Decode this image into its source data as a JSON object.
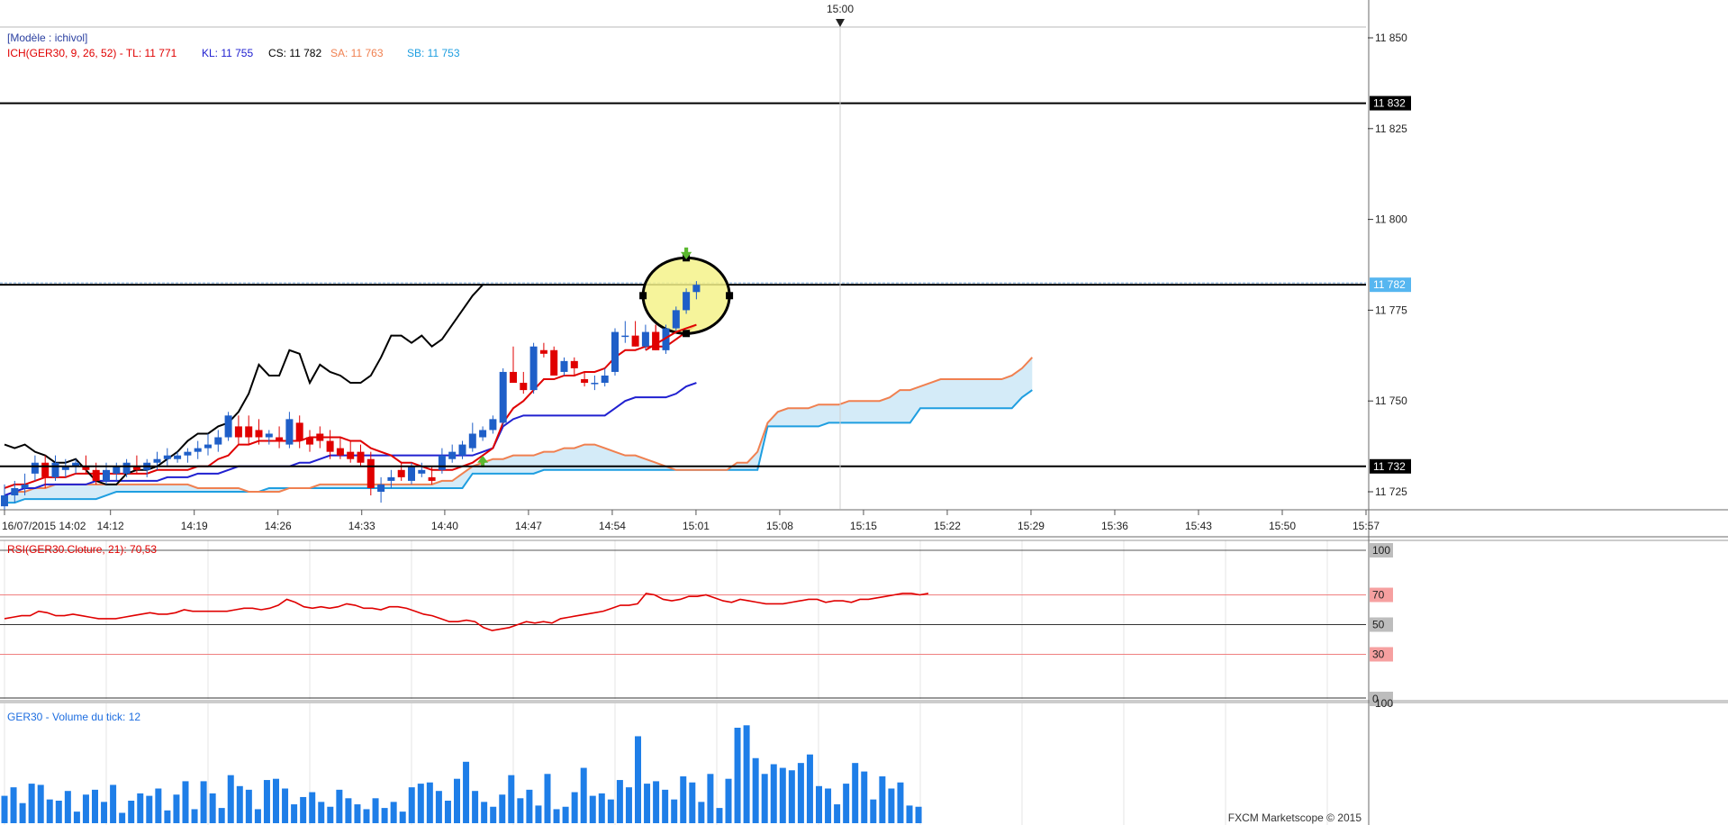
{
  "top_marker": {
    "label": "15:00"
  },
  "price_panel": {
    "model_label": "[Modèle : ichivol]",
    "indicator_parts": [
      {
        "text": "ICH(GER30, 9, 26, 52) -  TL: 11 771",
        "color": "#e00000"
      },
      {
        "text": "KL: 11 755",
        "color": "#2020d0"
      },
      {
        "text": "CS: 11 782",
        "color": "#000000"
      },
      {
        "text": "SA: 11 763",
        "color": "#f08050"
      },
      {
        "text": "SB: 11 753",
        "color": "#1e9ee0"
      }
    ],
    "y_ticks": [
      "11 850",
      "11 825",
      "11 800",
      "11 775",
      "11 750",
      "11 725"
    ],
    "price_tags": [
      {
        "text": "11 832",
        "style": "black"
      },
      {
        "text": "11 782",
        "style": "blue"
      },
      {
        "text": "11 732",
        "style": "black"
      }
    ]
  },
  "x_axis": {
    "labels": [
      "16/07/2015 14:02",
      "14:12",
      "14:19",
      "14:26",
      "14:33",
      "14:40",
      "14:47",
      "14:54",
      "15:01",
      "15:08",
      "15:15",
      "15:22",
      "15:29",
      "15:36",
      "15:43",
      "15:50",
      "15:57"
    ]
  },
  "rsi_panel": {
    "title": "RSI(GER30.Cloture, 21): 70,53",
    "levels": [
      "100",
      "70",
      "50",
      "30",
      "0"
    ]
  },
  "volume_panel": {
    "title": "GER30 - Volume du tick: 12",
    "tick": "100"
  },
  "watermark": "FXCM Marketscope © 2015",
  "colors": {
    "bull": "#1f5fc8",
    "bear": "#e00000",
    "tenkan": "#e00000",
    "kijun": "#2020d0",
    "chikou": "#000000",
    "senkou_a": "#f08050",
    "senkou_b": "#1e9ee0",
    "cloud": "#cfe9f7",
    "rsi": "#e00000",
    "volume": "#1e7ee8",
    "highlight": "#f5f28a"
  },
  "chart_data": [
    {
      "type": "candlestick",
      "title": "ICH(GER30, 9, 26, 52)",
      "x_start": "14:02",
      "interval_minutes": 1,
      "ylim": [
        11710,
        11853
      ],
      "candles": [
        [
          11721,
          11727,
          11719,
          11724
        ],
        [
          11724,
          11728,
          11722,
          11726
        ],
        [
          11726,
          11730,
          11724,
          11727
        ],
        [
          11730,
          11735,
          11728,
          11733
        ],
        [
          11733,
          11735,
          11726,
          11729
        ],
        [
          11729,
          11735,
          11728,
          11733
        ],
        [
          11731,
          11734,
          11729,
          11732
        ],
        [
          11732,
          11734,
          11730,
          11733
        ],
        [
          11732,
          11735,
          11730,
          11731
        ],
        [
          11731,
          11733,
          11727,
          11728
        ],
        [
          11728,
          11733,
          11727,
          11731
        ],
        [
          11730,
          11733,
          11728,
          11732
        ],
        [
          11730,
          11734,
          11729,
          11733
        ],
        [
          11732,
          11735,
          11730,
          11731
        ],
        [
          11731,
          11734,
          11729,
          11733
        ],
        [
          11733,
          11736,
          11731,
          11734
        ],
        [
          11734,
          11737,
          11732,
          11735
        ],
        [
          11734,
          11736,
          11733,
          11735
        ],
        [
          11735,
          11737,
          11733,
          11736
        ],
        [
          11736,
          11739,
          11734,
          11737
        ],
        [
          11737,
          11741,
          11735,
          11738
        ],
        [
          11738,
          11742,
          11736,
          11740
        ],
        [
          11740,
          11747,
          11739,
          11746
        ],
        [
          11743,
          11746,
          11738,
          11740
        ],
        [
          11743,
          11746,
          11738,
          11740
        ],
        [
          11742,
          11745,
          11738,
          11740
        ],
        [
          11740,
          11742,
          11738,
          11741
        ],
        [
          11740,
          11743,
          11737,
          11739
        ],
        [
          11738,
          11747,
          11737,
          11745
        ],
        [
          11744,
          11746,
          11737,
          11739
        ],
        [
          11740,
          11742,
          11736,
          11738
        ],
        [
          11741,
          11743,
          11737,
          11739
        ],
        [
          11739,
          11742,
          11734,
          11736
        ],
        [
          11737,
          11740,
          11734,
          11735
        ],
        [
          11736,
          11739,
          11733,
          11734
        ],
        [
          11736,
          11738,
          11732,
          11733
        ],
        [
          11734,
          11736,
          11724,
          11726
        ],
        [
          11725,
          11729,
          11722,
          11727
        ],
        [
          11728,
          11731,
          11726,
          11729
        ],
        [
          11731,
          11733,
          11728,
          11729
        ],
        [
          11728,
          11733,
          11727,
          11732
        ],
        [
          11730,
          11733,
          11729,
          11731
        ],
        [
          11729,
          11732,
          11727,
          11728
        ],
        [
          11731,
          11737,
          11730,
          11735
        ],
        [
          11734,
          11738,
          11733,
          11736
        ],
        [
          11735,
          11739,
          11734,
          11738
        ],
        [
          11737,
          11744,
          11736,
          11741
        ],
        [
          11740,
          11743,
          11739,
          11742
        ],
        [
          11742,
          11746,
          11741,
          11745
        ],
        [
          11744,
          11759,
          11743,
          11758
        ],
        [
          11758,
          11765,
          11755,
          11755
        ],
        [
          11755,
          11758,
          11752,
          11753
        ],
        [
          11753,
          11766,
          11752,
          11765
        ],
        [
          11764,
          11766,
          11762,
          11763
        ],
        [
          11764,
          11765,
          11757,
          11757
        ],
        [
          11758,
          11762,
          11757,
          11761
        ],
        [
          11761,
          11762,
          11757,
          11759
        ],
        [
          11756,
          11758,
          11754,
          11755
        ],
        [
          11755,
          11757,
          11753,
          11755
        ],
        [
          11755,
          11759,
          11754,
          11757
        ],
        [
          11758,
          11770,
          11757,
          11769
        ],
        [
          11768,
          11772,
          11766,
          11768
        ],
        [
          11768,
          11772,
          11765,
          11765
        ],
        [
          11765,
          11771,
          11764,
          11769
        ],
        [
          11769,
          11771,
          11764,
          11764
        ],
        [
          11764,
          11771,
          11763,
          11770
        ],
        [
          11770,
          11776,
          11769,
          11775
        ],
        [
          11775,
          11781,
          11774,
          11780
        ],
        [
          11780,
          11783,
          11778,
          11782
        ]
      ],
      "tenkan": [
        11726,
        11727,
        11727,
        11728,
        11729,
        11729,
        11729,
        11730,
        11730,
        11730,
        11730,
        11730,
        11730,
        11730,
        11730,
        11731,
        11731,
        11731,
        11731,
        11732,
        11732,
        11734,
        11735,
        11738,
        11738,
        11739,
        11739,
        11739,
        11739,
        11739,
        11740,
        11740,
        11740,
        11740,
        11739,
        11739,
        11737,
        11736,
        11735,
        11733,
        11733,
        11732,
        11731,
        11731,
        11731,
        11732,
        11733,
        11735,
        11737,
        11744,
        11748,
        11750,
        11753,
        11756,
        11756,
        11757,
        11757,
        11758,
        11758,
        11759,
        11762,
        11764,
        11764,
        11765,
        11765,
        11765,
        11767,
        11769,
        11771
      ],
      "kijun": [
        11724,
        11725,
        11726,
        11726,
        11727,
        11727,
        11727,
        11727,
        11727,
        11728,
        11728,
        11728,
        11728,
        11728,
        11728,
        11728,
        11729,
        11729,
        11729,
        11730,
        11730,
        11730,
        11731,
        11732,
        11732,
        11732,
        11732,
        11732,
        11732,
        11733,
        11733,
        11734,
        11735,
        11735,
        11735,
        11735,
        11735,
        11735,
        11735,
        11735,
        11735,
        11735,
        11735,
        11735,
        11735,
        11735,
        11735,
        11736,
        11737,
        11743,
        11745,
        11746,
        11746,
        11746,
        11746,
        11746,
        11746,
        11746,
        11746,
        11746,
        11748,
        11750,
        11751,
        11751,
        11751,
        11751,
        11752,
        11754,
        11755
      ],
      "chikou": [
        11738,
        11737,
        11738,
        11736,
        11735,
        11733,
        11733,
        11734,
        11731,
        11728,
        11727,
        11727,
        11730,
        11731,
        11731,
        11732,
        11734,
        11736,
        11739,
        11741,
        11741,
        11743,
        11744,
        11747,
        11752,
        11760,
        11757,
        11757,
        11764,
        11763,
        11755,
        11760,
        11758,
        11757,
        11755,
        11755,
        11757,
        11762,
        11768,
        11768,
        11766,
        11768,
        11765,
        11767,
        11771,
        11775,
        11779,
        11782
      ],
      "senkou_a": [
        11724,
        11725,
        11725,
        11726,
        11726,
        11727,
        11727,
        11727,
        11727,
        11727,
        11727,
        11727,
        11727,
        11727,
        11727,
        11727,
        11727,
        11727,
        11727,
        11726,
        11726,
        11726,
        11726,
        11726,
        11725,
        11725,
        11725,
        11725,
        11726,
        11726,
        11726,
        11727,
        11727,
        11727,
        11727,
        11727,
        11727,
        11727,
        11727,
        11727,
        11727,
        11727,
        11727,
        11728,
        11728,
        11730,
        11732,
        11733,
        11734,
        11734,
        11735,
        11735,
        11735,
        11736,
        11736,
        11737,
        11737,
        11738,
        11738,
        11737,
        11736,
        11735,
        11735,
        11734,
        11733,
        11732,
        11731,
        11731,
        11731,
        11731,
        11731,
        11731,
        11733,
        11733,
        11736,
        11744,
        11747,
        11748,
        11748,
        11748,
        11749,
        11749,
        11749,
        11750,
        11750,
        11750,
        11750,
        11751,
        11753,
        11753,
        11754,
        11755,
        11756,
        11756,
        11756,
        11756,
        11756,
        11756,
        11756,
        11757,
        11759,
        11762
      ],
      "senkou_b": [
        11722,
        11722,
        11723,
        11723,
        11723,
        11723,
        11723,
        11723,
        11723,
        11723,
        11724,
        11725,
        11725,
        11725,
        11725,
        11725,
        11725,
        11725,
        11725,
        11725,
        11725,
        11725,
        11725,
        11725,
        11725,
        11725,
        11726,
        11726,
        11726,
        11726,
        11726,
        11726,
        11726,
        11726,
        11726,
        11726,
        11726,
        11726,
        11726,
        11726,
        11726,
        11726,
        11726,
        11726,
        11726,
        11726,
        11730,
        11730,
        11730,
        11730,
        11730,
        11730,
        11730,
        11731,
        11731,
        11731,
        11731,
        11731,
        11731,
        11731,
        11731,
        11731,
        11731,
        11731,
        11731,
        11731,
        11731,
        11731,
        11731,
        11731,
        11731,
        11731,
        11731,
        11731,
        11731,
        11743,
        11743,
        11743,
        11743,
        11743,
        11743,
        11744,
        11744,
        11744,
        11744,
        11744,
        11744,
        11744,
        11744,
        11744,
        11748,
        11748,
        11748,
        11748,
        11748,
        11748,
        11748,
        11748,
        11748,
        11748,
        11751,
        11753
      ],
      "horizontal_lines": [
        11832,
        11782,
        11732
      ]
    },
    {
      "type": "line",
      "title": "RSI(GER30.Cloture, 21)",
      "ylim": [
        0,
        100
      ],
      "levels": [
        30,
        50,
        70
      ],
      "values": [
        54,
        55,
        56,
        56,
        59,
        58,
        56,
        56,
        57,
        56,
        55,
        54,
        54,
        54,
        55,
        56,
        57,
        58,
        57,
        57,
        58,
        60,
        59,
        59,
        59,
        59,
        59,
        60,
        61,
        61,
        60,
        61,
        63,
        67,
        65,
        62,
        61,
        62,
        61,
        62,
        64,
        63,
        61,
        61,
        60,
        62,
        62,
        61,
        59,
        57,
        56,
        54,
        52,
        52,
        53,
        52,
        48,
        46,
        47,
        48,
        50,
        52,
        51,
        52,
        51,
        54,
        55,
        56,
        57,
        58,
        59,
        61,
        63,
        63,
        64,
        71,
        70,
        67,
        66,
        67,
        69,
        69,
        70,
        68,
        66,
        65,
        67,
        66,
        65,
        64,
        64,
        64,
        65,
        66,
        67,
        67,
        65,
        66,
        66,
        65,
        67,
        67,
        68,
        69,
        70,
        71,
        71,
        70,
        71
      ]
    },
    {
      "type": "bar",
      "title": "GER30 - Volume du tick",
      "ylim": [
        0,
        110
      ],
      "values": [
        24,
        31,
        18,
        34,
        33,
        21,
        20,
        28,
        11,
        25,
        29,
        19,
        33,
        10,
        20,
        26,
        24,
        30,
        12,
        25,
        36,
        13,
        36,
        26,
        14,
        41,
        32,
        29,
        13,
        37,
        38,
        30,
        17,
        23,
        27,
        19,
        15,
        29,
        22,
        17,
        13,
        22,
        14,
        19,
        11,
        31,
        34,
        35,
        28,
        20,
        38,
        52,
        28,
        19,
        15,
        25,
        41,
        22,
        29,
        16,
        42,
        13,
        15,
        27,
        47,
        24,
        26,
        21,
        37,
        31,
        73,
        34,
        36,
        29,
        21,
        40,
        35,
        19,
        42,
        14,
        38,
        80,
        82,
        55,
        42,
        50,
        47,
        45,
        51,
        58,
        32,
        30,
        17,
        34,
        51,
        44,
        21,
        40,
        30,
        35,
        16,
        15
      ]
    }
  ]
}
